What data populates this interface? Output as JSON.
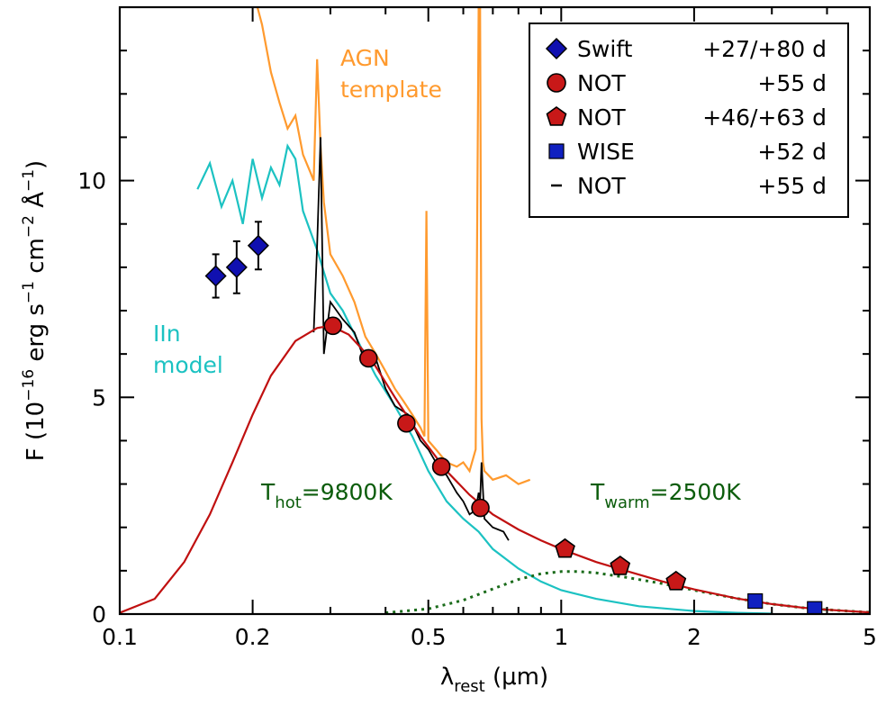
{
  "colors": {
    "axis": "#000000",
    "blackbody": "#c01010",
    "hot_component": "#c01010",
    "warm_component": "#1a6b1a",
    "agn": "#ff9a2e",
    "iin": "#1cc2c2",
    "spectrum": "#000000",
    "swift": "#1010b0",
    "not_circle": "#c81818",
    "wise": "#1020c0",
    "annotation_green": "#0b5c0b"
  },
  "chart_data": {
    "type": "scatter",
    "title": "",
    "xlabel": "λrest (μm)",
    "ylabel": "F (10−16 erg s−1 cm−2 Å−1)",
    "x_scale": "log",
    "xlim": [
      0.1,
      5
    ],
    "ylim": [
      0,
      14
    ],
    "xticks": [
      {
        "value": 0.1,
        "label": "0.1"
      },
      {
        "value": 0.2,
        "label": "0.2"
      },
      {
        "value": 0.5,
        "label": "0.5"
      },
      {
        "value": 1,
        "label": "1"
      },
      {
        "value": 2,
        "label": "2"
      },
      {
        "value": 5,
        "label": "5"
      }
    ],
    "yticks": [
      {
        "value": 0,
        "label": "0"
      },
      {
        "value": 5,
        "label": "5"
      },
      {
        "value": 10,
        "label": "10"
      }
    ],
    "legend": {
      "position": "top-right",
      "entries": [
        {
          "marker": "diamond",
          "label": "Swift",
          "epoch": "+27/+80 d"
        },
        {
          "marker": "circle",
          "label": "NOT",
          "epoch": "+55 d"
        },
        {
          "marker": "pentagon",
          "label": "NOT",
          "epoch": "+46/+63 d"
        },
        {
          "marker": "square",
          "label": "WISE",
          "epoch": "+52 d"
        },
        {
          "marker": "line",
          "label": "NOT",
          "epoch": "+55 d"
        }
      ]
    },
    "annotations": {
      "agn_line1": "AGN",
      "agn_line2": "template",
      "iin_line1": "IIn",
      "iin_line2": "model",
      "t_hot_symbol": "T",
      "t_hot_sub": "hot",
      "t_hot_value": "=9800K",
      "t_warm_symbol": "T",
      "t_warm_sub": "warm",
      "t_warm_value": "=2500K"
    },
    "points": {
      "swift": [
        {
          "x": 0.165,
          "y": 7.8,
          "err": 0.5
        },
        {
          "x": 0.184,
          "y": 8.0,
          "err": 0.6
        },
        {
          "x": 0.206,
          "y": 8.5,
          "err": 0.55
        }
      ],
      "not_circle": [
        {
          "x": 0.304,
          "y": 6.65
        },
        {
          "x": 0.366,
          "y": 5.9
        },
        {
          "x": 0.446,
          "y": 4.4
        },
        {
          "x": 0.535,
          "y": 3.4
        },
        {
          "x": 0.656,
          "y": 2.45
        }
      ],
      "not_pentagon": [
        {
          "x": 1.02,
          "y": 1.5
        },
        {
          "x": 1.36,
          "y": 1.1
        },
        {
          "x": 1.82,
          "y": 0.75
        }
      ],
      "wise": [
        {
          "x": 2.75,
          "y": 0.3
        },
        {
          "x": 3.75,
          "y": 0.12
        }
      ]
    },
    "series": [
      {
        "id": "total_blackbody",
        "x": [
          0.1,
          0.12,
          0.14,
          0.16,
          0.18,
          0.2,
          0.22,
          0.25,
          0.28,
          0.3,
          0.33,
          0.37,
          0.42,
          0.48,
          0.55,
          0.62,
          0.7,
          0.8,
          0.9,
          1.0,
          1.2,
          1.4,
          1.7,
          2.0,
          2.5,
          3.0,
          3.5,
          4.0,
          5.0
        ],
        "y": [
          0.03,
          0.35,
          1.2,
          2.3,
          3.5,
          4.6,
          5.5,
          6.3,
          6.6,
          6.65,
          6.45,
          5.9,
          5.0,
          4.1,
          3.3,
          2.75,
          2.3,
          1.95,
          1.7,
          1.5,
          1.2,
          1.0,
          0.75,
          0.57,
          0.36,
          0.23,
          0.15,
          0.1,
          0.04
        ]
      },
      {
        "id": "warm_blackbody",
        "x": [
          0.4,
          0.5,
          0.6,
          0.7,
          0.8,
          0.9,
          1.0,
          1.1,
          1.2,
          1.4,
          1.7,
          2.0,
          2.5,
          3.0,
          3.5,
          4.0,
          5.0
        ],
        "y": [
          0.03,
          0.12,
          0.32,
          0.58,
          0.8,
          0.93,
          0.98,
          0.98,
          0.95,
          0.85,
          0.7,
          0.55,
          0.36,
          0.23,
          0.15,
          0.1,
          0.04
        ]
      },
      {
        "id": "agn_template",
        "x": [
          0.205,
          0.21,
          0.22,
          0.23,
          0.24,
          0.25,
          0.26,
          0.27,
          0.275,
          0.28,
          0.285,
          0.29,
          0.3,
          0.32,
          0.34,
          0.36,
          0.38,
          0.4,
          0.42,
          0.44,
          0.46,
          0.48,
          0.49,
          0.495,
          0.5,
          0.52,
          0.55,
          0.58,
          0.6,
          0.62,
          0.64,
          0.65,
          0.655,
          0.66,
          0.665,
          0.67,
          0.7,
          0.75,
          0.8,
          0.85
        ],
        "y": [
          14.0,
          13.6,
          12.5,
          11.8,
          11.2,
          11.5,
          10.6,
          10.2,
          10.0,
          12.8,
          10.8,
          9.5,
          8.3,
          7.8,
          7.2,
          6.4,
          6.0,
          5.6,
          5.2,
          4.9,
          4.6,
          4.3,
          4.1,
          9.3,
          4.0,
          3.8,
          3.5,
          3.4,
          3.5,
          3.3,
          3.8,
          14.0,
          14.0,
          4.5,
          3.5,
          3.3,
          3.1,
          3.2,
          3.0,
          3.1
        ]
      },
      {
        "id": "iin_model",
        "x": [
          0.15,
          0.16,
          0.17,
          0.18,
          0.19,
          0.2,
          0.21,
          0.22,
          0.23,
          0.24,
          0.25,
          0.26,
          0.28,
          0.3,
          0.32,
          0.35,
          0.38,
          0.42,
          0.46,
          0.5,
          0.55,
          0.6,
          0.65,
          0.7,
          0.8,
          0.9,
          1.0,
          1.2,
          1.5,
          2.0,
          2.5,
          3.0
        ],
        "y": [
          9.8,
          10.4,
          9.4,
          10.0,
          9.0,
          10.5,
          9.6,
          10.3,
          9.9,
          10.8,
          10.5,
          9.3,
          8.4,
          7.4,
          7.0,
          6.2,
          5.5,
          4.8,
          4.1,
          3.3,
          2.6,
          2.2,
          1.9,
          1.5,
          1.05,
          0.75,
          0.55,
          0.35,
          0.18,
          0.07,
          0.03,
          0.01
        ]
      },
      {
        "id": "not_spectrum",
        "x": [
          0.275,
          0.28,
          0.285,
          0.29,
          0.3,
          0.32,
          0.34,
          0.36,
          0.38,
          0.4,
          0.42,
          0.45,
          0.48,
          0.5,
          0.52,
          0.55,
          0.58,
          0.6,
          0.62,
          0.64,
          0.65,
          0.655,
          0.66,
          0.67,
          0.7,
          0.74,
          0.76
        ],
        "y": [
          6.5,
          8.5,
          11.0,
          6.0,
          7.2,
          6.8,
          6.5,
          5.8,
          5.9,
          5.2,
          4.8,
          4.6,
          4.0,
          3.8,
          3.5,
          3.2,
          2.8,
          2.6,
          2.3,
          2.4,
          2.8,
          2.6,
          3.5,
          2.2,
          2.0,
          1.9,
          1.7
        ]
      }
    ]
  }
}
